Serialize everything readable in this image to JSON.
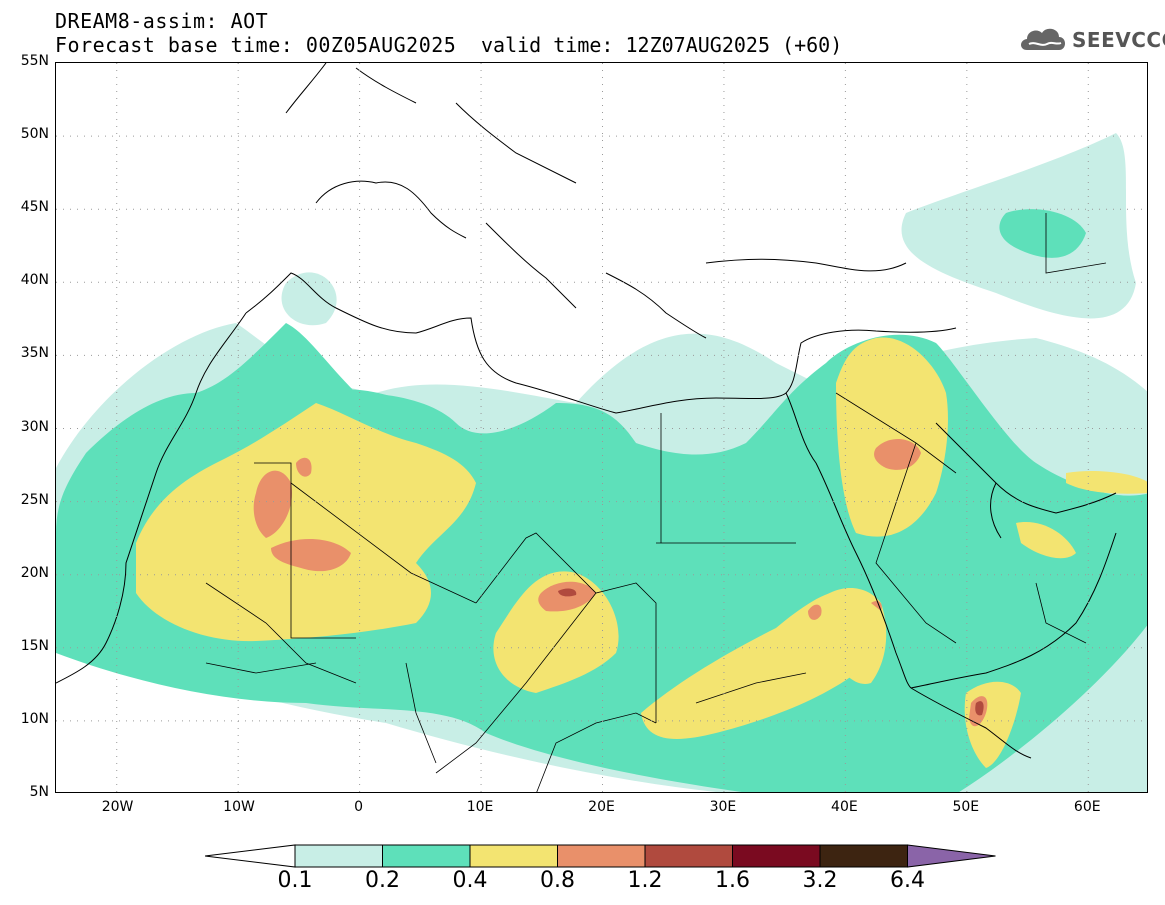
{
  "title": {
    "line1": "DREAM8-assim: AOT",
    "line2": "Forecast base time: 00Z05AUG2025",
    "valid": "valid time: 12Z07AUG2025 (+60)"
  },
  "logo": {
    "text": "SEEVCCC",
    "icon": "cloud-icon"
  },
  "map": {
    "lon_range": [
      -25,
      65
    ],
    "lat_range": [
      5,
      55
    ],
    "lat_labels": [
      "55N",
      "50N",
      "45N",
      "40N",
      "35N",
      "30N",
      "25N",
      "20N",
      "15N",
      "10N",
      "5N"
    ],
    "lon_labels": [
      "20W",
      "10W",
      "0",
      "10E",
      "20E",
      "30E",
      "40E",
      "50E",
      "60E"
    ],
    "gridlines": "dotted"
  },
  "colorbar": {
    "labels": [
      "0.1",
      "0.2",
      "0.4",
      "0.8",
      "1.2",
      "1.6",
      "3.2",
      "6.4"
    ],
    "colors": [
      "#ffffff",
      "#c8eee6",
      "#5ee0ba",
      "#f3e471",
      "#e9906a",
      "#b04a3e",
      "#7a0a20",
      "#3d2411",
      "#8a64a8"
    ]
  }
}
